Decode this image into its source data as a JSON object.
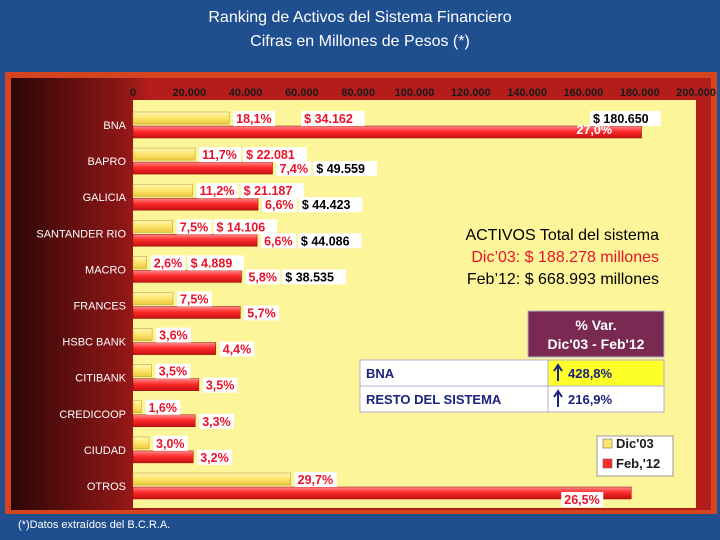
{
  "header": {
    "title": "Ranking  de Activos del Sistema Financiero",
    "subtitle": "Cifras en Millones de Pesos (*)"
  },
  "footnote": "(*)Datos extraídos del B.C.R.A.",
  "colors": {
    "dic03_bar": "#ffe56b",
    "feb12_bar": "#ff2b2b",
    "plot_bg": "#fcf59a",
    "label_red": "#e8132a"
  },
  "chart_data": {
    "type": "bar",
    "orientation": "horizontal",
    "xlim": [
      0,
      200000
    ],
    "x_ticks": [
      "0",
      "20.000",
      "40.000",
      "60.000",
      "80.000",
      "100.000",
      "120.000",
      "140.000",
      "160.000",
      "180.000",
      "200.000"
    ],
    "grid": false,
    "legend_position": "bottom-right",
    "categories": [
      "BNA",
      "BAPRO",
      "GALICIA",
      "SANTANDER RIO",
      "MACRO",
      "FRANCES",
      "HSBC BANK",
      "CITIBANK",
      "CREDICOOP",
      "CIUDAD",
      "OTROS"
    ],
    "series": [
      {
        "name": "Dic'03",
        "values": [
          34162,
          22081,
          21187,
          14106,
          4889,
          14200,
          6800,
          6600,
          3000,
          5700,
          56000
        ],
        "share_labels": [
          "18,1%",
          "11,7%",
          "11,2%",
          "7,5%",
          "2,6%",
          "7,5%",
          "3,6%",
          "3,5%",
          "1,6%",
          "3,0%",
          "29,7%"
        ],
        "amount_labels": [
          "$ 34.162",
          "$ 22.081",
          "$ 21.187",
          "$ 14.106",
          "$ 4.889",
          "",
          "",
          "",
          "",
          "",
          ""
        ]
      },
      {
        "name": "Feb,'12",
        "values": [
          180650,
          49559,
          44423,
          44086,
          38535,
          38100,
          29400,
          23400,
          22100,
          21400,
          177000
        ],
        "share_labels": [
          "27,0%",
          "7,4%",
          "6,6%",
          "6,6%",
          "5,8%",
          "5,7%",
          "4,4%",
          "3,5%",
          "3,3%",
          "3,2%",
          "26,5%"
        ],
        "amount_labels": [
          "$ 180.650",
          "$ 49.559",
          "$ 44.423",
          "$ 44.086",
          "$ 38.535",
          "",
          "",
          "",
          "",
          "",
          ""
        ]
      }
    ],
    "annotation": {
      "line1": "ACTIVOS Total del sistema",
      "line2": "Dic’03: $ 188.278 millones",
      "line3": "Feb’12: $ 668.993  millones"
    },
    "var_table": {
      "header_line1": "% Var.",
      "header_line2": "Dic'03 - Feb'12",
      "rows": [
        {
          "label": "BNA",
          "value": "428,8%"
        },
        {
          "label": "RESTO DEL SISTEMA",
          "value": "216,9%"
        }
      ]
    }
  }
}
